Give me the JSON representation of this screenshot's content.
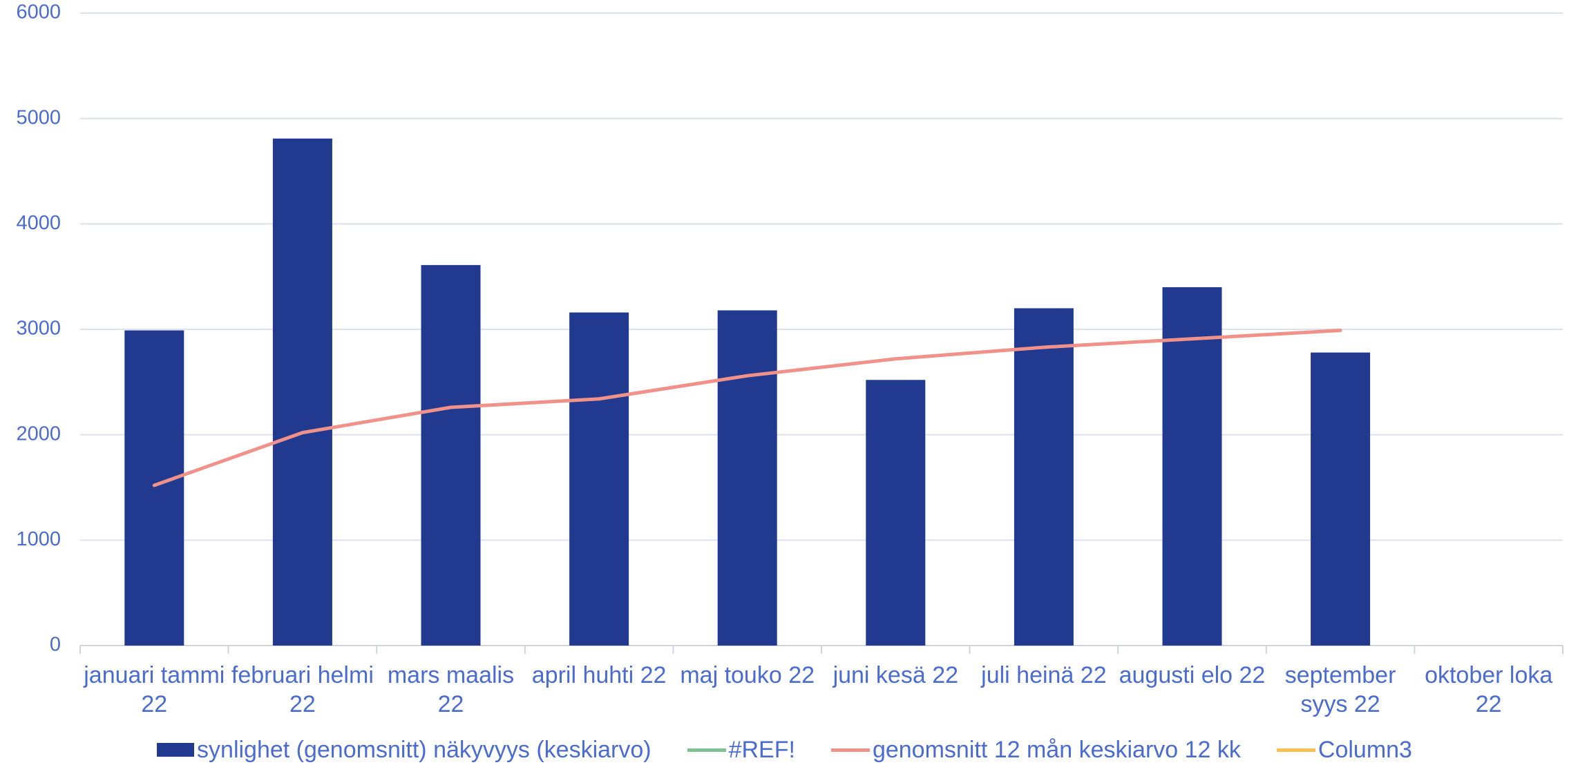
{
  "chart_data": {
    "type": "bar",
    "categories": [
      "januari tammi 22",
      "februari helmi 22",
      "mars maalis 22",
      "april huhti 22",
      "maj touko 22",
      "juni kesä 22",
      "juli heinä 22",
      "augusti elo 22",
      "september syys 22",
      "oktober loka 22"
    ],
    "series": [
      {
        "name": "synlighet (genomsnitt) näkyvyys (keskiarvo)",
        "type": "bar",
        "color": "#213a8f",
        "values": [
          2990,
          4810,
          3610,
          3160,
          3180,
          2520,
          3200,
          3400,
          2780,
          null
        ]
      },
      {
        "name": "#REF!",
        "type": "line",
        "color": "#7ec08f",
        "values": [
          null,
          null,
          null,
          null,
          null,
          null,
          null,
          null,
          null,
          null
        ]
      },
      {
        "name": "genomsnitt 12 mån keskiarvo 12 kk",
        "type": "line",
        "color": "#f0928a",
        "values": [
          1520,
          2020,
          2260,
          2340,
          2560,
          2720,
          2830,
          2910,
          2990,
          null
        ]
      },
      {
        "name": "Column3",
        "type": "line",
        "color": "#f8c050",
        "values": [
          null,
          null,
          null,
          null,
          null,
          null,
          null,
          null,
          null,
          null
        ]
      }
    ],
    "ylim": [
      0,
      6000
    ],
    "yticks": [
      0,
      1000,
      2000,
      3000,
      4000,
      5000,
      6000
    ],
    "grid": true,
    "legend": "bottom"
  }
}
